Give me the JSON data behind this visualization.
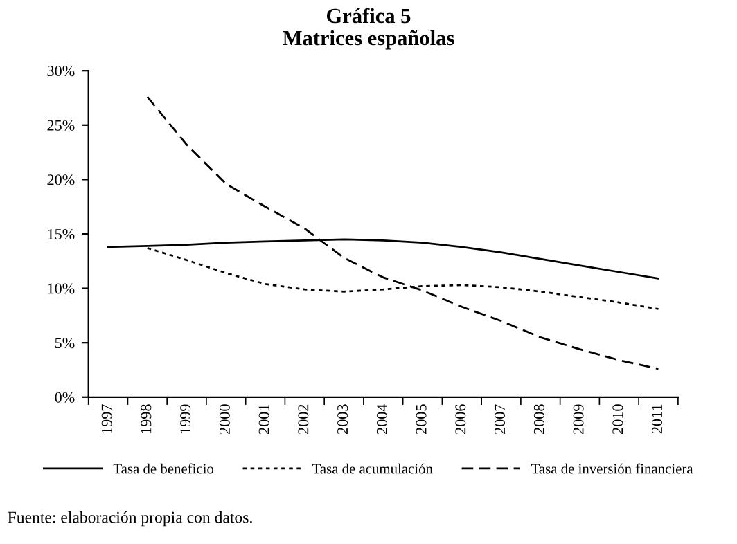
{
  "chart_data": {
    "type": "line",
    "title": "Gráfica 5\nMatrices españolas",
    "categories": [
      "1997",
      "1998",
      "1999",
      "2000",
      "2001",
      "2002",
      "2003",
      "2004",
      "2005",
      "2006",
      "2007",
      "2008",
      "2009",
      "2010",
      "2011"
    ],
    "series": [
      {
        "name": "Tasa de beneficio",
        "color": "#000000",
        "line_style": "solid",
        "values": [
          13.8,
          13.9,
          14.0,
          14.2,
          14.3,
          14.4,
          14.5,
          14.4,
          14.2,
          13.8,
          13.3,
          12.7,
          12.1,
          11.5,
          10.9
        ]
      },
      {
        "name": "Tasa de acumulación",
        "color": "#000000",
        "line_style": "dotted",
        "values": [
          null,
          13.7,
          12.6,
          11.4,
          10.4,
          9.9,
          9.7,
          9.9,
          10.2,
          10.3,
          10.1,
          9.7,
          9.2,
          8.7,
          8.1
        ]
      },
      {
        "name": "Tasa de inversión financiera",
        "color": "#000000",
        "line_style": "dashed",
        "values": [
          null,
          27.6,
          23.2,
          19.6,
          17.5,
          15.5,
          12.8,
          11.0,
          9.8,
          8.3,
          7.0,
          5.5,
          4.4,
          3.4,
          2.6
        ]
      }
    ],
    "ylim": [
      0,
      30
    ],
    "yticks": [
      {
        "value": 0,
        "label": "0%"
      },
      {
        "value": 5,
        "label": "5%"
      },
      {
        "value": 10,
        "label": "10%"
      },
      {
        "value": 15,
        "label": "15%"
      },
      {
        "value": 20,
        "label": "20%"
      },
      {
        "value": 25,
        "label": "25%"
      },
      {
        "value": 30,
        "label": "30%"
      }
    ],
    "grid": false,
    "legend": "bottom",
    "marker": "none",
    "annotations": [
      "Fuente: elaboración propia con datos."
    ]
  }
}
